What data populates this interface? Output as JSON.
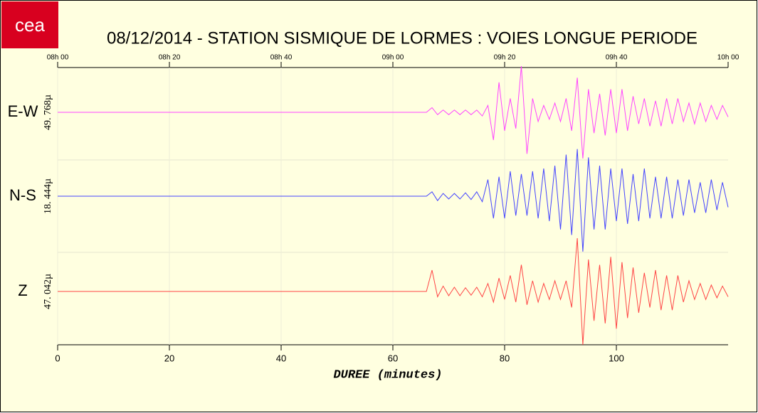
{
  "chart_data": {
    "type": "line",
    "logo": "cea",
    "title": "08/12/2014  -  STATION SISMIQUE DE LORMES : VOIES LONGUE PERIODE",
    "x_label": "DUREE (minutes)",
    "xlim": [
      0,
      120
    ],
    "xticks": [
      0,
      20,
      40,
      60,
      80,
      100
    ],
    "x2ticks": [
      {
        "value": 0,
        "label": "08h 00"
      },
      {
        "value": 20,
        "label": "08h 20"
      },
      {
        "value": 40,
        "label": "08h 40"
      },
      {
        "value": 60,
        "label": "09h 00"
      },
      {
        "value": 80,
        "label": "09h 20"
      },
      {
        "value": 100,
        "label": "09h 40"
      },
      {
        "value": 120,
        "label": "10h 00"
      }
    ],
    "grid": true,
    "ylim": [
      -1,
      1
    ],
    "x": [
      0,
      1,
      2,
      3,
      4,
      5,
      6,
      7,
      8,
      9,
      10,
      11,
      12,
      13,
      14,
      15,
      16,
      17,
      18,
      19,
      20,
      21,
      22,
      23,
      24,
      25,
      26,
      27,
      28,
      29,
      30,
      31,
      32,
      33,
      34,
      35,
      36,
      37,
      38,
      39,
      40,
      41,
      42,
      43,
      44,
      45,
      46,
      47,
      48,
      49,
      50,
      51,
      52,
      53,
      54,
      55,
      56,
      57,
      58,
      59,
      60,
      61,
      62,
      63,
      64,
      65,
      66,
      67,
      68,
      69,
      70,
      71,
      72,
      73,
      74,
      75,
      76,
      77,
      78,
      79,
      80,
      81,
      82,
      83,
      84,
      85,
      86,
      87,
      88,
      89,
      90,
      91,
      92,
      93,
      94,
      95,
      96,
      97,
      98,
      99,
      100,
      101,
      102,
      103,
      104,
      105,
      106,
      107,
      108,
      109,
      110,
      111,
      112,
      113,
      114,
      115,
      116,
      117,
      118,
      119,
      120
    ],
    "series": [
      {
        "name": "E-W",
        "scale_label": "49. 768µ",
        "color": "#ff44ff",
        "values": [
          0,
          0,
          0,
          0,
          0,
          0,
          0,
          0,
          0,
          0,
          0,
          0,
          0,
          0,
          0,
          0,
          0,
          0,
          0,
          0,
          0,
          0,
          0,
          0,
          0,
          0,
          0,
          0,
          0,
          0,
          0,
          0,
          0,
          0,
          0,
          0,
          0,
          0,
          0,
          0,
          0,
          0,
          0,
          0,
          0,
          0,
          0,
          0,
          0,
          0,
          0,
          0,
          0,
          0,
          0,
          0,
          0,
          0,
          0,
          0,
          0,
          0,
          0,
          0,
          0,
          0,
          0,
          0.1,
          -0.05,
          0.05,
          -0.05,
          0.05,
          -0.05,
          0.05,
          -0.05,
          0.05,
          -0.08,
          0.15,
          -0.6,
          0.65,
          -0.4,
          0.3,
          -0.35,
          1.0,
          -0.9,
          0.3,
          -0.2,
          0.15,
          -0.15,
          0.2,
          -0.2,
          0.3,
          -0.4,
          0.75,
          -1.0,
          0.5,
          -0.45,
          0.4,
          -0.5,
          0.5,
          -0.45,
          0.5,
          -0.4,
          0.35,
          -0.25,
          0.3,
          -0.3,
          0.25,
          -0.3,
          0.3,
          -0.25,
          0.3,
          -0.2,
          0.2,
          -0.25,
          0.2,
          -0.2,
          0.15,
          -0.15,
          0.15,
          -0.1
        ]
      },
      {
        "name": "N-S",
        "scale_label": "18. 444µ",
        "color": "#4444ff",
        "values": [
          0,
          0,
          0,
          0,
          0,
          0,
          0,
          0,
          0,
          0,
          0,
          0,
          0,
          0,
          0,
          0,
          0,
          0,
          0,
          0,
          0,
          0,
          0,
          0,
          0,
          0,
          0,
          0,
          0,
          0,
          0,
          0,
          0,
          0,
          0,
          0,
          0,
          0,
          0,
          0,
          0,
          0,
          0,
          0,
          0,
          0,
          0,
          0,
          0,
          0,
          0,
          0,
          0,
          0,
          0,
          0,
          0,
          0,
          0,
          0,
          0,
          0,
          0,
          0,
          0,
          0,
          0,
          0.08,
          -0.08,
          0.05,
          -0.05,
          0.05,
          -0.05,
          0.06,
          -0.06,
          0.08,
          -0.1,
          0.3,
          -0.4,
          0.35,
          -0.4,
          0.45,
          -0.35,
          0.4,
          -0.35,
          0.45,
          -0.4,
          0.5,
          -0.45,
          0.55,
          -0.6,
          0.75,
          -0.7,
          0.85,
          -1.0,
          0.7,
          -0.6,
          0.55,
          -0.6,
          0.5,
          -0.45,
          0.5,
          -0.5,
          0.4,
          -0.45,
          0.5,
          -0.4,
          0.35,
          -0.4,
          0.35,
          -0.4,
          0.3,
          -0.35,
          0.3,
          -0.3,
          0.25,
          -0.3,
          0.3,
          -0.25,
          0.25,
          -0.2
        ]
      },
      {
        "name": "Z",
        "scale_label": "47. 042µ",
        "color": "#ff4444",
        "values": [
          0,
          0,
          0,
          0,
          0,
          0,
          0,
          0,
          0,
          0,
          0,
          0,
          0,
          0,
          0,
          0,
          0,
          0,
          0,
          0,
          0,
          0,
          0,
          0,
          0,
          0,
          0,
          0,
          0,
          0,
          0,
          0,
          0,
          0,
          0,
          0,
          0,
          0,
          0,
          0,
          0,
          0,
          0,
          0,
          0,
          0,
          0,
          0,
          0,
          0,
          0,
          0,
          0,
          0,
          0,
          0,
          0,
          0,
          0,
          0,
          0,
          0,
          0,
          0,
          0,
          0,
          0,
          0.4,
          -0.1,
          0.1,
          -0.08,
          0.08,
          -0.08,
          0.07,
          -0.07,
          0.08,
          -0.1,
          0.15,
          -0.2,
          0.25,
          -0.15,
          0.3,
          -0.2,
          0.5,
          -0.25,
          0.2,
          -0.2,
          0.15,
          -0.15,
          0.2,
          -0.15,
          0.2,
          -0.3,
          1.0,
          -1.0,
          0.6,
          -0.55,
          0.5,
          -0.6,
          0.65,
          -0.7,
          0.55,
          -0.5,
          0.45,
          -0.4,
          0.35,
          -0.3,
          0.4,
          -0.35,
          0.3,
          -0.35,
          0.3,
          -0.2,
          0.2,
          -0.15,
          0.15,
          -0.15,
          0.12,
          -0.12,
          0.1,
          -0.1
        ]
      }
    ]
  }
}
